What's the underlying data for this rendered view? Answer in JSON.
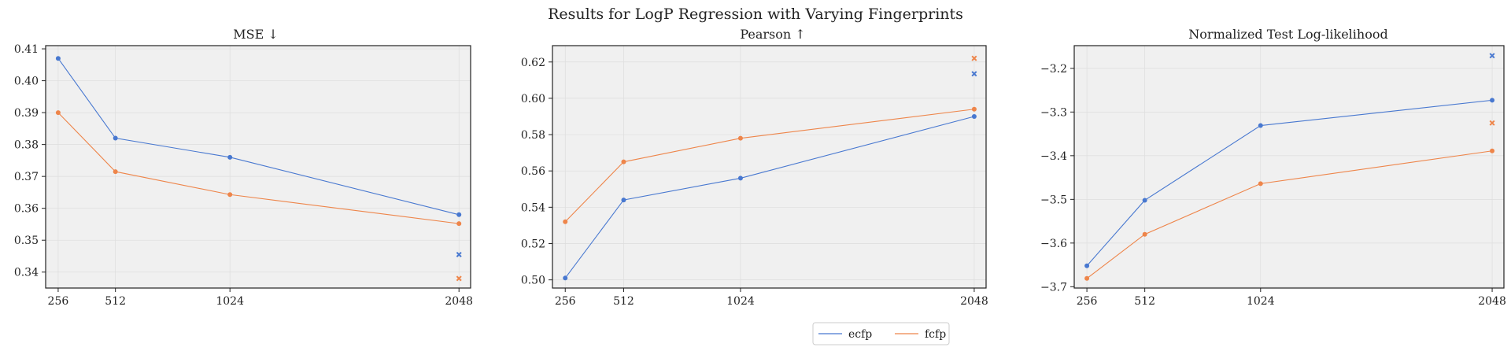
{
  "title": "Results for LogP Regression with Varying Fingerprints",
  "colors": {
    "ecfp": "#4878d0",
    "fcfp": "#ee854a",
    "plot_bg": "#f0f0f0",
    "grid": "#dddddd"
  },
  "legend": {
    "placement": "bottom-center",
    "entries": [
      "ecfp",
      "fcfp"
    ]
  },
  "chart_data": [
    {
      "type": "line",
      "title": "MSE  ↓",
      "x": [
        256,
        512,
        1024,
        2048
      ],
      "xticks": [
        "256",
        "512",
        "1024",
        "2048"
      ],
      "xlim": [
        200,
        2100
      ],
      "ylim": [
        0.335,
        0.411
      ],
      "yticks": [
        0.34,
        0.35,
        0.36,
        0.37,
        0.38,
        0.39,
        0.4,
        0.41
      ],
      "ytick_labels": [
        "0.34",
        "0.35",
        "0.36",
        "0.37",
        "0.38",
        "0.39",
        "0.40",
        "0.41"
      ],
      "grid": true,
      "series": [
        {
          "name": "ecfp",
          "values": [
            0.407,
            0.382,
            0.376,
            0.358
          ],
          "extra_marker": {
            "x": 2048,
            "y": 0.3455
          }
        },
        {
          "name": "fcfp",
          "values": [
            0.39,
            0.3715,
            0.3643,
            0.3552
          ],
          "extra_marker": {
            "x": 2048,
            "y": 0.338
          }
        }
      ]
    },
    {
      "type": "line",
      "title": "Pearson  ↑",
      "x": [
        256,
        512,
        1024,
        2048
      ],
      "xticks": [
        "256",
        "512",
        "1024",
        "2048"
      ],
      "xlim": [
        200,
        2100
      ],
      "ylim": [
        0.4955,
        0.629
      ],
      "yticks": [
        0.5,
        0.52,
        0.54,
        0.56,
        0.58,
        0.6,
        0.62
      ],
      "ytick_labels": [
        "0.50",
        "0.52",
        "0.54",
        "0.56",
        "0.58",
        "0.60",
        "0.62"
      ],
      "grid": true,
      "series": [
        {
          "name": "ecfp",
          "values": [
            0.501,
            0.544,
            0.556,
            0.59
          ],
          "extra_marker": {
            "x": 2048,
            "y": 0.6135
          }
        },
        {
          "name": "fcfp",
          "values": [
            0.532,
            0.565,
            0.578,
            0.594
          ],
          "extra_marker": {
            "x": 2048,
            "y": 0.622
          }
        }
      ]
    },
    {
      "type": "line",
      "title": "Normalized Test Log-likelihood",
      "x": [
        256,
        512,
        1024,
        2048
      ],
      "xticks": [
        "256",
        "512",
        "1024",
        "2048"
      ],
      "xlim": [
        200,
        2100
      ],
      "ylim": [
        -3.703,
        -3.148
      ],
      "yticks": [
        -3.7,
        -3.6,
        -3.5,
        -3.4,
        -3.3,
        -3.2
      ],
      "ytick_labels": [
        "−3.7",
        "−3.6",
        "−3.5",
        "−3.4",
        "−3.3",
        "−3.2"
      ],
      "grid": true,
      "series": [
        {
          "name": "ecfp",
          "values": [
            -3.652,
            -3.502,
            -3.331,
            -3.273
          ],
          "extra_marker": {
            "x": 2048,
            "y": -3.171
          }
        },
        {
          "name": "fcfp",
          "values": [
            -3.681,
            -3.58,
            -3.464,
            -3.389
          ],
          "extra_marker": {
            "x": 2048,
            "y": -3.325
          }
        }
      ]
    }
  ]
}
